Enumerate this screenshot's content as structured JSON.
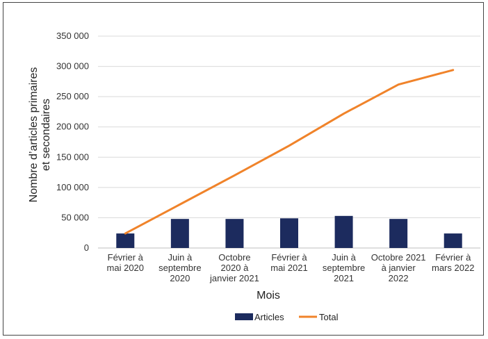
{
  "chart_data": {
    "type": "bar",
    "categories": [
      [
        "Février à",
        "mai 2020"
      ],
      [
        "Juin à",
        "septembre",
        "2020"
      ],
      [
        "Octobre",
        "2020 à",
        "janvier 2021"
      ],
      [
        "Février à",
        "mai 2021"
      ],
      [
        "Juin à",
        "septembre",
        "2021"
      ],
      [
        "Octobre 2021",
        "à janvier",
        "2022"
      ],
      [
        "Février à",
        "mars 2022"
      ]
    ],
    "series": [
      {
        "name": "Articles",
        "type": "bar",
        "color": "#1c2b5e",
        "values": [
          24000,
          48000,
          48000,
          49000,
          53000,
          48000,
          24000
        ]
      },
      {
        "name": "Total",
        "type": "line",
        "color": "#f0832a",
        "values": [
          24000,
          72000,
          120000,
          169000,
          222000,
          270000,
          294000
        ]
      }
    ],
    "xlabel": "Mois",
    "ylabel": [
      "Nombre d’articles primaires",
      "et secondaires"
    ],
    "ylim": [
      0,
      350000
    ],
    "yticks": [
      0,
      50000,
      100000,
      150000,
      200000,
      250000,
      300000,
      350000
    ],
    "ytick_labels": [
      "0",
      "50 000",
      "100 000",
      "150 000",
      "200 000",
      "250 000",
      "300 000",
      "350 000"
    ],
    "grid": true,
    "legend_position": "bottom"
  }
}
